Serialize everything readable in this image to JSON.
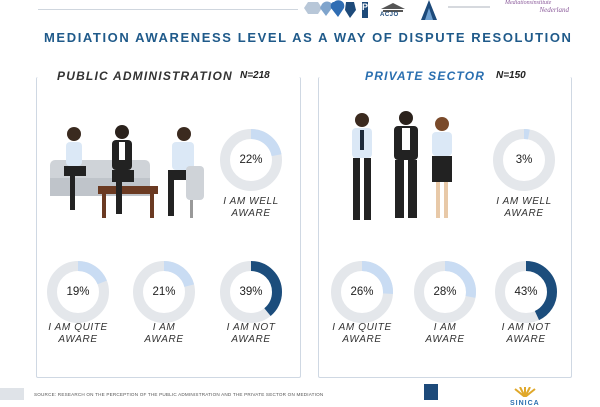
{
  "header": {
    "title": "MEDIATION AWARENESS LEVEL AS A WAY OF DISPUTE RESOLUTION",
    "logo_acjo": "ACJO",
    "logo_p": "P",
    "logo_mediation_line1": "Mediationsinstitute",
    "logo_mediation_line2": "Nederland"
  },
  "panels": {
    "public": {
      "title": "PUBLIC ADMINISTRATION",
      "n": "N=218",
      "color": "#333333",
      "items": [
        {
          "value": 22,
          "label": "22%",
          "line1": "I AM WELL",
          "line2": "AWARE"
        },
        {
          "value": 19,
          "label": "19%",
          "line1": "I AM QUITE",
          "line2": "AWARE"
        },
        {
          "value": 21,
          "label": "21%",
          "line1": "I AM",
          "line2": "AWARE"
        },
        {
          "value": 39,
          "label": "39%",
          "line1": "I AM NOT",
          "line2": "AWARE"
        }
      ]
    },
    "private": {
      "title": "PRIVATE SECTOR",
      "n": "N=150",
      "color": "#2a6fb0",
      "items": [
        {
          "value": 3,
          "label": "3%",
          "line1": "I AM WELL",
          "line2": "AWARE"
        },
        {
          "value": 26,
          "label": "26%",
          "line1": "I AM QUITE",
          "line2": "AWARE"
        },
        {
          "value": 28,
          "label": "28%",
          "line1": "I AM",
          "line2": "AWARE"
        },
        {
          "value": 43,
          "label": "43%",
          "line1": "I AM NOT",
          "line2": "AWARE"
        }
      ]
    }
  },
  "footer": {
    "source": "SOURCE: RESEARCH ON THE PERCEPTION OF THE PUBLIC ADMINISTRATION AND THE PRIVATE SECTOR ON MEDIATION",
    "logo_text": "SINICA"
  },
  "colors": {
    "track": "#e4e7eb",
    "light_arc": "#c9dcf3",
    "dark_arc": "#1c4d7c",
    "title": "#1f5a8a"
  },
  "chart_data": [
    {
      "type": "pie",
      "title": "PUBLIC ADMINISTRATION",
      "subtitle": "N=218",
      "categories": [
        "I AM WELL AWARE",
        "I AM QUITE AWARE",
        "I AM AWARE",
        "I AM NOT AWARE"
      ],
      "values": [
        22,
        19,
        21,
        39
      ],
      "unit": "%"
    },
    {
      "type": "pie",
      "title": "PRIVATE SECTOR",
      "subtitle": "N=150",
      "categories": [
        "I AM WELL AWARE",
        "I AM QUITE AWARE",
        "I AM AWARE",
        "I AM NOT AWARE"
      ],
      "values": [
        3,
        26,
        28,
        43
      ],
      "unit": "%"
    }
  ]
}
